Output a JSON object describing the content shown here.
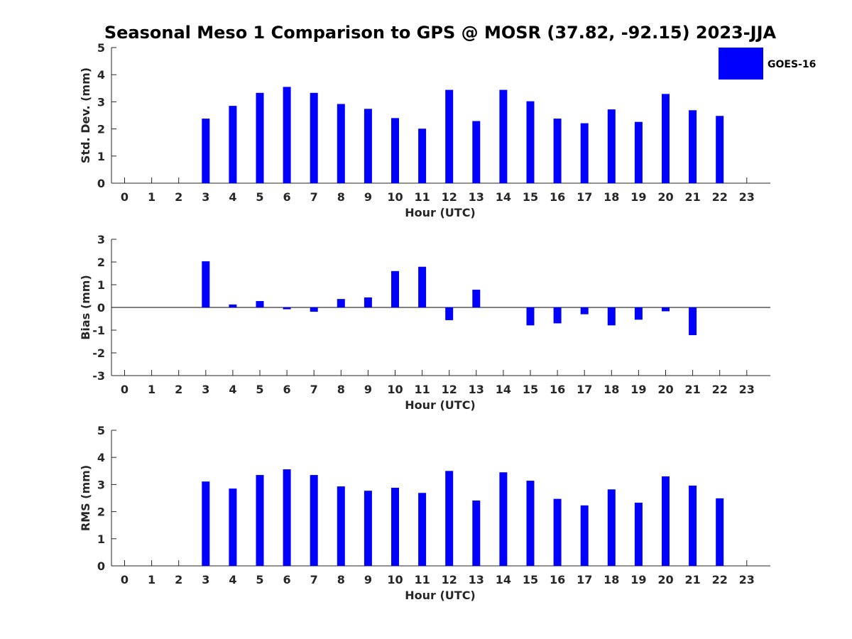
{
  "title": "Seasonal Meso 1 Comparison to GPS @ MOSR (37.82, -92.15) 2023-JJA",
  "legend": {
    "label": "GOES-16",
    "placement": "top-right"
  },
  "colors": {
    "bar": "#0000ff",
    "axis": "#262626",
    "zero_line": "#000000"
  },
  "chart_data": [
    {
      "type": "bar",
      "xlabel": "Hour (UTC)",
      "ylabel": "Std. Dev. (mm)",
      "ylim": [
        0,
        5
      ],
      "yticks": [
        "0",
        "1",
        "2",
        "3",
        "4",
        "5"
      ],
      "categories": [
        "0",
        "1",
        "2",
        "3",
        "4",
        "5",
        "6",
        "7",
        "8",
        "9",
        "10",
        "11",
        "12",
        "13",
        "14",
        "15",
        "16",
        "17",
        "18",
        "19",
        "20",
        "21",
        "22",
        "23"
      ],
      "series": [
        {
          "name": "GOES-16",
          "values": [
            null,
            null,
            null,
            2.38,
            2.85,
            3.33,
            3.55,
            3.33,
            2.92,
            2.74,
            2.4,
            2.01,
            3.44,
            2.29,
            3.44,
            3.02,
            2.38,
            2.21,
            2.72,
            2.26,
            3.29,
            2.69,
            2.48,
            null
          ]
        }
      ]
    },
    {
      "type": "bar",
      "xlabel": "Hour (UTC)",
      "ylabel": "Bias (mm)",
      "ylim": [
        -3,
        3
      ],
      "yticks": [
        "-3",
        "-2",
        "-1",
        "0",
        "1",
        "2",
        "3"
      ],
      "categories": [
        "0",
        "1",
        "2",
        "3",
        "4",
        "5",
        "6",
        "7",
        "8",
        "9",
        "10",
        "11",
        "12",
        "13",
        "14",
        "15",
        "16",
        "17",
        "18",
        "19",
        "20",
        "21",
        "22",
        "23"
      ],
      "series": [
        {
          "name": "GOES-16",
          "values": [
            null,
            null,
            null,
            2.03,
            0.13,
            0.28,
            -0.08,
            -0.19,
            0.37,
            0.44,
            1.6,
            1.79,
            -0.56,
            0.78,
            null,
            -0.79,
            -0.7,
            -0.3,
            -0.79,
            -0.54,
            -0.17,
            -1.22,
            null,
            null
          ]
        }
      ]
    },
    {
      "type": "bar",
      "xlabel": "Hour (UTC)",
      "ylabel": "RMS (mm)",
      "ylim": [
        0,
        5
      ],
      "yticks": [
        "0",
        "1",
        "2",
        "3",
        "4",
        "5"
      ],
      "categories": [
        "0",
        "1",
        "2",
        "3",
        "4",
        "5",
        "6",
        "7",
        "8",
        "9",
        "10",
        "11",
        "12",
        "13",
        "14",
        "15",
        "16",
        "17",
        "18",
        "19",
        "20",
        "21",
        "22",
        "23"
      ],
      "series": [
        {
          "name": "GOES-16",
          "values": [
            null,
            null,
            null,
            3.11,
            2.85,
            3.35,
            3.56,
            3.35,
            2.93,
            2.77,
            2.88,
            2.69,
            3.5,
            2.41,
            3.45,
            3.14,
            2.47,
            2.23,
            2.82,
            2.33,
            3.3,
            2.96,
            2.49,
            null
          ]
        }
      ]
    }
  ]
}
